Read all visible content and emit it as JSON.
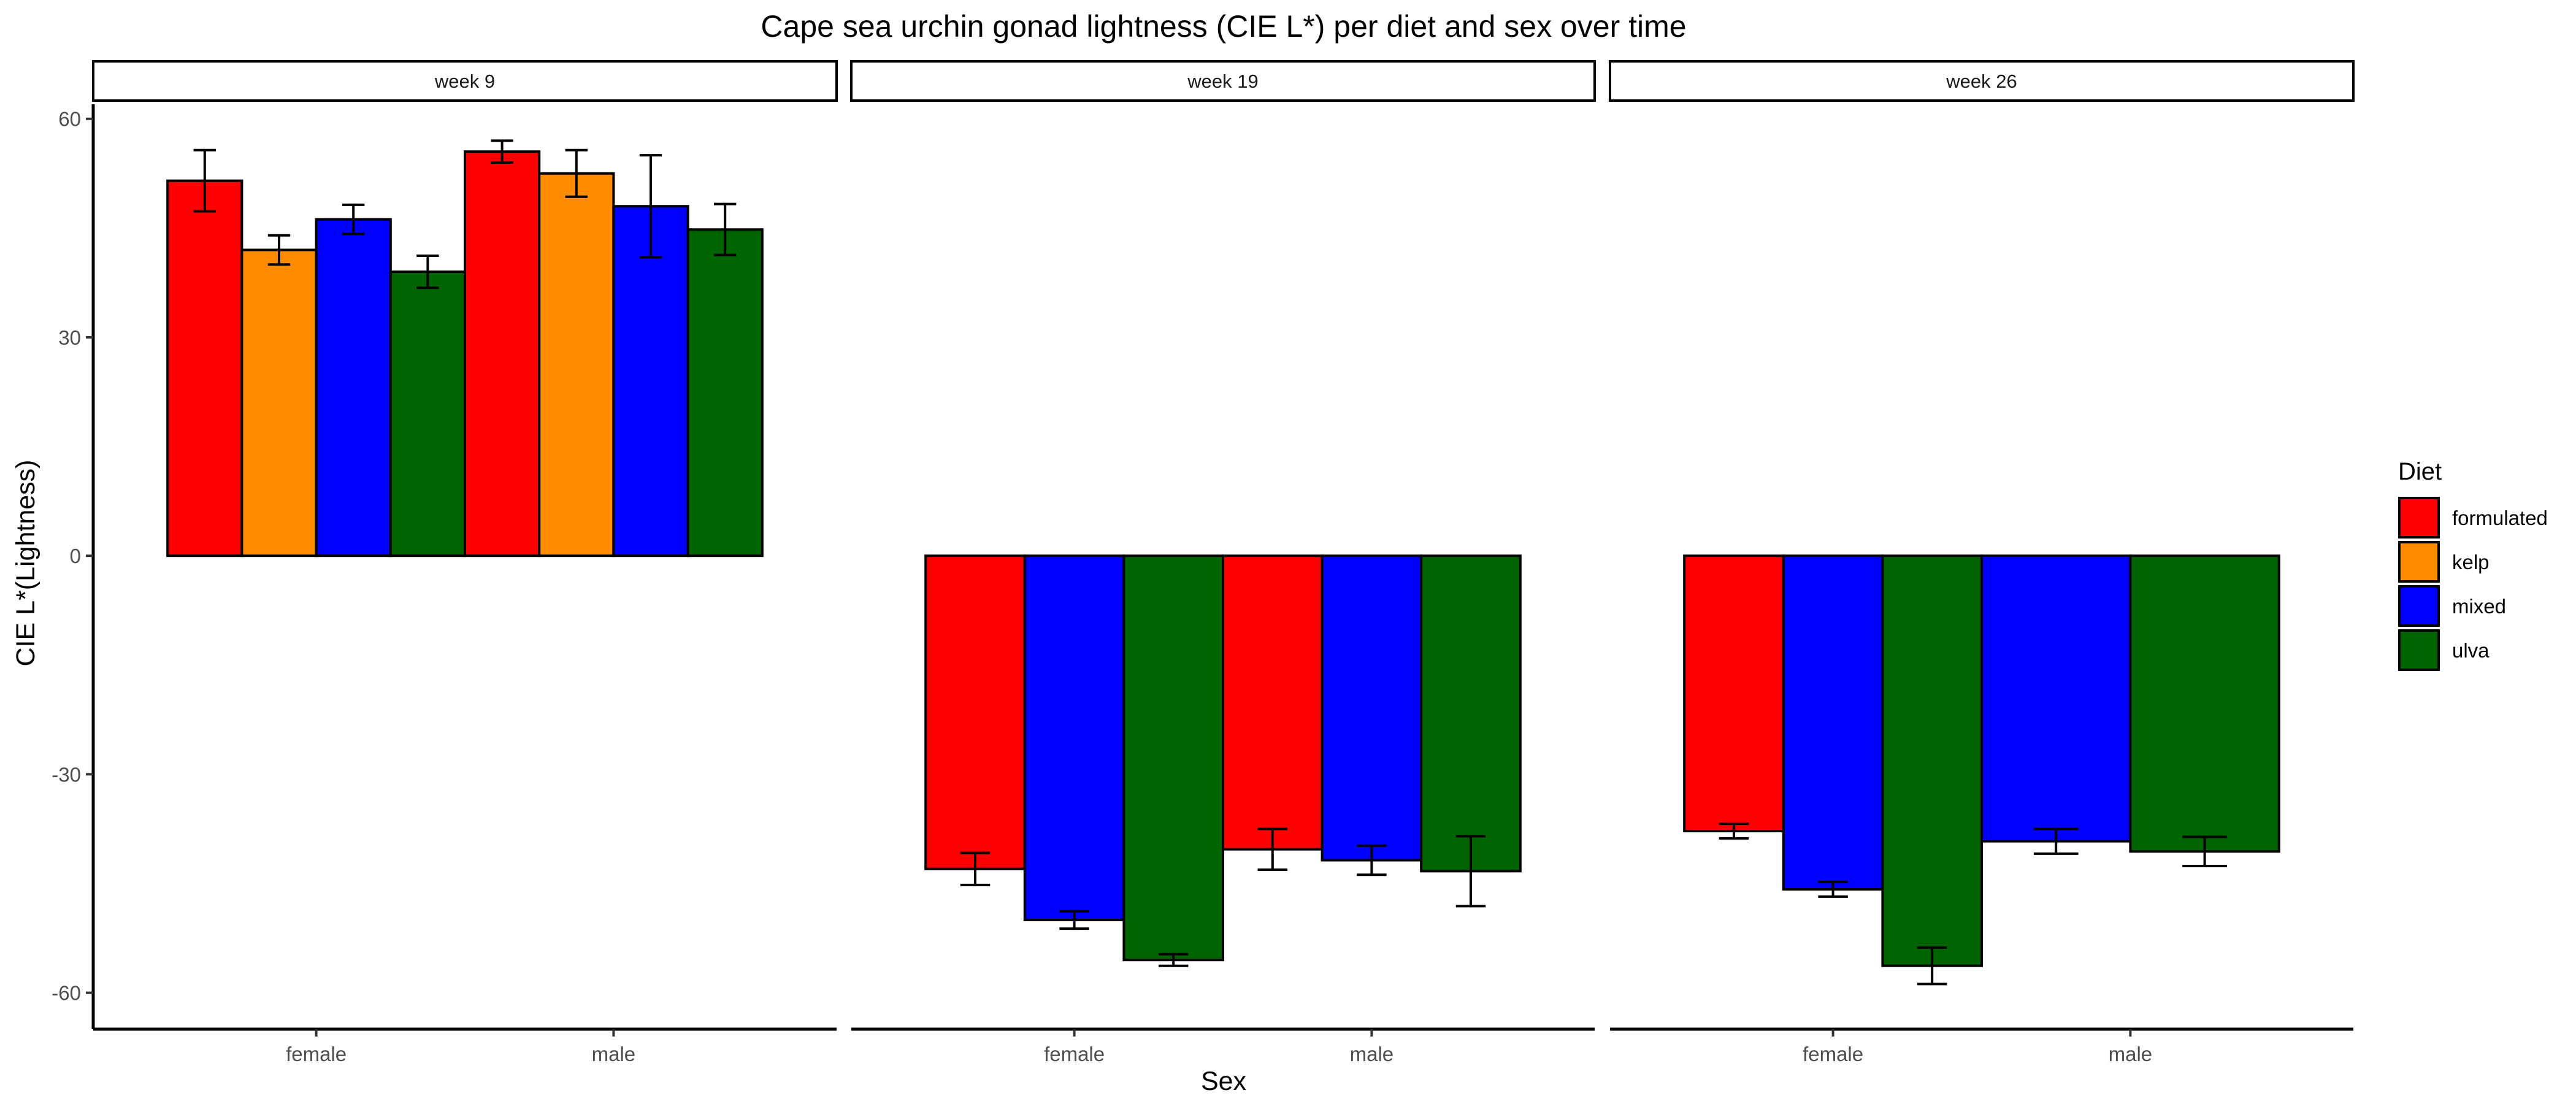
{
  "chart_data": {
    "type": "bar",
    "title": "Cape sea urchin gonad lightness (CIE L*) per diet and sex over time",
    "xlabel": "Sex",
    "ylabel": "CIE L*(Lightness)",
    "ylim": [
      -65,
      62
    ],
    "yticks": [
      60,
      30,
      0,
      -30,
      -60
    ],
    "ytick_labels": [
      "60",
      "30",
      "0",
      "-30",
      "-60"
    ],
    "grid": false,
    "legend_position": "right",
    "legend": {
      "title": "Diet",
      "entries": [
        {
          "name": "formulated",
          "color": "#ff0000"
        },
        {
          "name": "kelp",
          "color": "#ff8c00"
        },
        {
          "name": "mixed",
          "color": "#0000ff"
        },
        {
          "name": "ulva",
          "color": "#006400"
        }
      ]
    },
    "panels": [
      {
        "label": "week 9",
        "categories": [
          "female",
          "male"
        ],
        "groups": [
          {
            "category": "female",
            "bars": [
              {
                "diet": "formulated",
                "value": 51.5,
                "err": 4.2
              },
              {
                "diet": "kelp",
                "value": 42.0,
                "err": 2.0
              },
              {
                "diet": "mixed",
                "value": 46.2,
                "err": 2.0
              },
              {
                "diet": "ulva",
                "value": 39.0,
                "err": 2.2
              }
            ]
          },
          {
            "category": "male",
            "bars": [
              {
                "diet": "formulated",
                "value": 55.5,
                "err": 1.5
              },
              {
                "diet": "kelp",
                "value": 52.5,
                "err": 3.2
              },
              {
                "diet": "mixed",
                "value": 48.0,
                "err": 7.0
              },
              {
                "diet": "ulva",
                "value": 44.8,
                "err": 3.5
              }
            ]
          }
        ]
      },
      {
        "label": "week 19",
        "categories": [
          "female",
          "male"
        ],
        "groups": [
          {
            "category": "female",
            "bars": [
              {
                "diet": "formulated",
                "value": -43.0,
                "err": 2.2
              },
              {
                "diet": "mixed",
                "value": -50.0,
                "err": 1.2
              },
              {
                "diet": "ulva",
                "value": -55.5,
                "err": 0.8
              }
            ]
          },
          {
            "category": "male",
            "bars": [
              {
                "diet": "formulated",
                "value": -40.3,
                "err": 2.8
              },
              {
                "diet": "mixed",
                "value": -41.8,
                "err": 2.0
              },
              {
                "diet": "ulva",
                "value": -43.3,
                "err": 4.8
              }
            ]
          }
        ]
      },
      {
        "label": "week 26",
        "categories": [
          "female",
          "male"
        ],
        "groups": [
          {
            "category": "female",
            "bars": [
              {
                "diet": "formulated",
                "value": -37.8,
                "err": 1.0
              },
              {
                "diet": "mixed",
                "value": -45.8,
                "err": 1.0
              },
              {
                "diet": "ulva",
                "value": -56.3,
                "err": 2.5
              }
            ]
          },
          {
            "category": "male",
            "bars": [
              {
                "diet": "mixed",
                "value": -39.2,
                "err": 1.7
              },
              {
                "diet": "ulva",
                "value": -40.6,
                "err": 2.0
              }
            ]
          }
        ]
      }
    ]
  }
}
